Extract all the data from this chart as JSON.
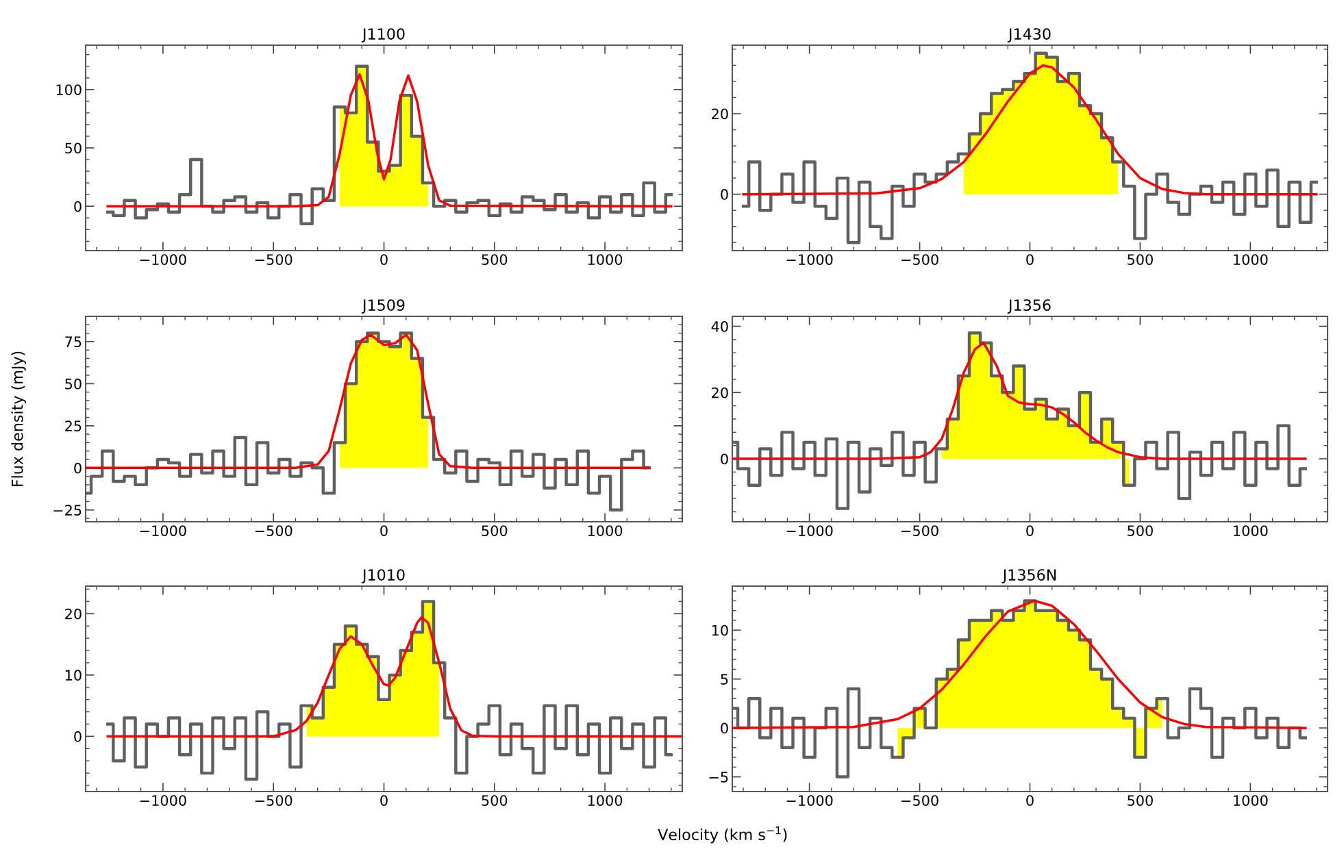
{
  "chart_data": [
    {
      "type": "step",
      "title": "J1100",
      "xlim": [
        -1350,
        1350
      ],
      "ylim": [
        -38,
        138
      ],
      "xticks": [
        -1000,
        -500,
        0,
        500,
        1000
      ],
      "yticks": [
        0,
        50,
        100
      ],
      "grid": false,
      "series": [
        {
          "type": "area",
          "color": "#ffff00",
          "x": [
            -200,
            -150,
            -100,
            -50,
            0,
            50,
            100,
            150,
            200
          ],
          "values": [
            85,
            80,
            120,
            55,
            30,
            35,
            95,
            60,
            20
          ]
        },
        {
          "color": "#606060",
          "x": [
            -1250,
            -1200,
            -1150,
            -1100,
            -1050,
            -1000,
            -950,
            -900,
            -850,
            -800,
            -750,
            -700,
            -650,
            -600,
            -550,
            -500,
            -450,
            -400,
            -350,
            -300,
            -250,
            -200,
            -150,
            -100,
            -50,
            0,
            50,
            100,
            150,
            200,
            250,
            300,
            350,
            400,
            450,
            500,
            550,
            600,
            650,
            700,
            750,
            800,
            850,
            900,
            950,
            1000,
            1050,
            1100,
            1150,
            1200,
            1250,
            1300
          ],
          "values": [
            -5,
            -8,
            5,
            -10,
            -3,
            2,
            -5,
            10,
            40,
            0,
            -5,
            5,
            8,
            -5,
            3,
            -10,
            0,
            10,
            -15,
            15,
            5,
            85,
            80,
            120,
            55,
            30,
            35,
            95,
            60,
            20,
            0,
            5,
            -5,
            3,
            5,
            -8,
            2,
            -5,
            8,
            5,
            -3,
            10,
            -5,
            3,
            -10,
            8,
            -5,
            10,
            -8,
            20,
            -5,
            10
          ]
        },
        {
          "type": "line",
          "color": "#ff0000",
          "x": [
            -1250,
            -400,
            -300,
            -250,
            -200,
            -150,
            -110,
            -70,
            -30,
            0,
            30,
            70,
            110,
            150,
            200,
            250,
            300,
            1300
          ],
          "values": [
            0,
            0,
            1,
            8,
            45,
            95,
            113,
            90,
            45,
            23,
            40,
            90,
            112,
            90,
            35,
            5,
            0.5,
            0
          ]
        }
      ]
    },
    {
      "type": "step",
      "title": "J1430",
      "xlim": [
        -1350,
        1350
      ],
      "ylim": [
        -14,
        37
      ],
      "xticks": [
        -1000,
        -500,
        0,
        500,
        1000
      ],
      "yticks": [
        0,
        20
      ],
      "grid": false,
      "series": [
        {
          "type": "area",
          "color": "#ffff00",
          "x": [
            -300,
            -250,
            -200,
            -150,
            -100,
            -50,
            0,
            50,
            100,
            150,
            200,
            250,
            300,
            350,
            400
          ],
          "values": [
            10,
            15,
            20,
            25,
            26,
            28,
            30,
            35,
            34,
            28,
            30,
            22,
            20,
            14,
            8
          ]
        },
        {
          "color": "#606060",
          "x": [
            -1300,
            -1250,
            -1200,
            -1150,
            -1100,
            -1050,
            -1000,
            -950,
            -900,
            -850,
            -800,
            -750,
            -700,
            -650,
            -600,
            -550,
            -500,
            -450,
            -400,
            -350,
            -300,
            -250,
            -200,
            -150,
            -100,
            -50,
            0,
            50,
            100,
            150,
            200,
            250,
            300,
            350,
            400,
            450,
            500,
            550,
            600,
            650,
            700,
            750,
            800,
            850,
            900,
            950,
            1000,
            1050,
            1100,
            1150,
            1200,
            1250,
            1300
          ],
          "values": [
            -3,
            8,
            -4,
            0,
            5,
            -2,
            8,
            -3,
            -6,
            4,
            -12,
            3,
            -8,
            -11,
            2,
            -3,
            5,
            3,
            5,
            8,
            10,
            15,
            20,
            25,
            26,
            28,
            30,
            35,
            34,
            28,
            30,
            22,
            20,
            14,
            8,
            2,
            -11,
            0,
            5,
            -2,
            -5,
            0,
            2,
            -2,
            3,
            -5,
            5,
            -3,
            6,
            -8,
            3,
            -7,
            3
          ]
        },
        {
          "type": "line",
          "color": "#ff0000",
          "x": [
            -1300,
            -700,
            -500,
            -400,
            -300,
            -200,
            -100,
            0,
            60,
            100,
            200,
            300,
            400,
            500,
            600,
            700,
            800,
            1300
          ],
          "values": [
            0,
            0.2,
            1.5,
            3.8,
            8,
            15,
            23,
            30,
            32,
            31.5,
            26.5,
            18.5,
            10,
            4,
            1.3,
            0.3,
            0,
            0
          ]
        }
      ]
    },
    {
      "type": "step",
      "title": "J1509",
      "ylabel": "Flux density (mJy)",
      "xlim": [
        -1350,
        1350
      ],
      "ylim": [
        -32,
        90
      ],
      "xticks": [
        -1000,
        -500,
        0,
        500,
        1000
      ],
      "yticks": [
        -25,
        0,
        25,
        50,
        75
      ],
      "grid": false,
      "series": [
        {
          "type": "area",
          "color": "#ffff00",
          "x": [
            -200,
            -150,
            -100,
            -50,
            0,
            50,
            100,
            150,
            200
          ],
          "values": [
            15,
            50,
            75,
            80,
            75,
            72,
            80,
            65,
            30
          ]
        },
        {
          "color": "#606060",
          "x": [
            -1350,
            -1300,
            -1250,
            -1200,
            -1150,
            -1100,
            -1050,
            -1000,
            -950,
            -900,
            -850,
            -800,
            -750,
            -700,
            -650,
            -600,
            -550,
            -500,
            -450,
            -400,
            -350,
            -300,
            -250,
            -200,
            -150,
            -100,
            -50,
            0,
            50,
            100,
            150,
            200,
            250,
            300,
            350,
            400,
            450,
            500,
            550,
            600,
            650,
            700,
            750,
            800,
            850,
            900,
            950,
            1000,
            1050,
            1100,
            1150,
            1200
          ],
          "values": [
            -15,
            -5,
            10,
            -8,
            -5,
            -10,
            0,
            5,
            3,
            -5,
            8,
            -3,
            10,
            -5,
            18,
            -10,
            15,
            -3,
            5,
            -5,
            3,
            0,
            -15,
            15,
            50,
            75,
            80,
            75,
            72,
            80,
            65,
            30,
            5,
            -3,
            10,
            -8,
            5,
            3,
            -10,
            10,
            -5,
            8,
            -12,
            5,
            -10,
            10,
            -15,
            -5,
            -25,
            5,
            10,
            0
          ]
        },
        {
          "type": "line",
          "color": "#ff0000",
          "x": [
            -1350,
            -400,
            -300,
            -250,
            -200,
            -150,
            -100,
            -60,
            0,
            50,
            100,
            150,
            200,
            250,
            300,
            400,
            1200
          ],
          "values": [
            0,
            0,
            2,
            10,
            35,
            62,
            76,
            79,
            73,
            74,
            79,
            70,
            38,
            8,
            1,
            0,
            0
          ]
        }
      ]
    },
    {
      "type": "step",
      "title": "J1356",
      "xlim": [
        -1350,
        1350
      ],
      "ylim": [
        -19,
        43
      ],
      "xticks": [
        -1000,
        -500,
        0,
        500,
        1000
      ],
      "yticks": [
        0,
        20,
        40
      ],
      "grid": false,
      "series": [
        {
          "type": "area",
          "color": "#ffff00",
          "x": [
            -400,
            -350,
            -300,
            -250,
            -200,
            -150,
            -100,
            -50,
            0,
            50,
            100,
            150,
            200,
            250,
            300,
            350,
            400,
            450
          ],
          "values": [
            3,
            12,
            25,
            38,
            35,
            25,
            20,
            28,
            15,
            18,
            12,
            15,
            10,
            20,
            5,
            12,
            5,
            -8
          ]
        },
        {
          "color": "#606060",
          "x": [
            -1350,
            -1300,
            -1250,
            -1200,
            -1150,
            -1100,
            -1050,
            -1000,
            -950,
            -900,
            -850,
            -800,
            -750,
            -700,
            -650,
            -600,
            -550,
            -500,
            -450,
            -400,
            -350,
            -300,
            -250,
            -200,
            -150,
            -100,
            -50,
            0,
            50,
            100,
            150,
            200,
            250,
            300,
            350,
            400,
            450,
            500,
            550,
            600,
            650,
            700,
            750,
            800,
            850,
            900,
            950,
            1000,
            1050,
            1100,
            1150,
            1200,
            1250
          ],
          "values": [
            5,
            -3,
            -8,
            3,
            -5,
            8,
            -3,
            5,
            -5,
            6,
            -15,
            5,
            -10,
            3,
            -2,
            8,
            -5,
            5,
            -7,
            3,
            12,
            25,
            38,
            35,
            25,
            20,
            28,
            15,
            18,
            12,
            15,
            10,
            20,
            5,
            12,
            5,
            -8,
            0,
            5,
            -3,
            8,
            -12,
            2,
            -5,
            5,
            -3,
            8,
            -8,
            5,
            -3,
            10,
            -8,
            -3
          ]
        },
        {
          "type": "line",
          "color": "#ff0000",
          "x": [
            -1350,
            -700,
            -500,
            -450,
            -400,
            -350,
            -300,
            -250,
            -210,
            -150,
            -100,
            -50,
            0,
            50,
            100,
            150,
            200,
            250,
            300,
            350,
            400,
            500,
            600,
            1250
          ],
          "values": [
            0,
            0,
            0.5,
            2,
            6,
            15,
            26,
            33,
            35,
            28,
            19,
            17,
            16.5,
            16.3,
            15.5,
            13.5,
            11,
            8,
            5.5,
            3.5,
            2,
            0.5,
            0,
            0
          ]
        }
      ]
    },
    {
      "type": "step",
      "title": "J1010",
      "xlabel": "Velocity (km s$^{−1}$)",
      "xlim": [
        -1350,
        1350
      ],
      "ylim": [
        -9,
        24.5
      ],
      "xticks": [
        -1000,
        -500,
        0,
        500,
        1000
      ],
      "yticks": [
        0,
        10,
        20
      ],
      "grid": false,
      "series": [
        {
          "type": "area",
          "color": "#ffff00",
          "x": [
            -350,
            -300,
            -250,
            -200,
            -150,
            -100,
            -50,
            0,
            50,
            100,
            150,
            200,
            250
          ],
          "values": [
            5,
            3,
            8,
            15,
            18,
            15,
            13,
            6,
            10,
            14,
            17,
            22,
            12
          ]
        },
        {
          "color": "#606060",
          "x": [
            -1250,
            -1200,
            -1150,
            -1100,
            -1050,
            -1000,
            -950,
            -900,
            -850,
            -800,
            -750,
            -700,
            -650,
            -600,
            -550,
            -500,
            -450,
            -400,
            -350,
            -300,
            -250,
            -200,
            -150,
            -100,
            -50,
            0,
            50,
            100,
            150,
            200,
            250,
            300,
            350,
            400,
            450,
            500,
            550,
            600,
            650,
            700,
            750,
            800,
            850,
            900,
            950,
            1000,
            1050,
            1100,
            1150,
            1200,
            1250,
            1300
          ],
          "values": [
            2,
            -4,
            3,
            -5,
            2,
            0,
            3,
            -3,
            2,
            -6,
            3,
            -2,
            3,
            -7,
            4,
            0,
            2,
            -5,
            5,
            3,
            8,
            15,
            18,
            15,
            13,
            6,
            10,
            14,
            17,
            22,
            12,
            3,
            -6,
            0,
            2,
            5,
            -3,
            2,
            -2,
            -6,
            5,
            -2,
            5,
            -3,
            2,
            -6,
            3,
            -2,
            2,
            -5,
            3,
            -3
          ]
        },
        {
          "type": "line",
          "color": "#ff0000",
          "x": [
            -1250,
            -500,
            -400,
            -350,
            -300,
            -250,
            -200,
            -150,
            -100,
            -50,
            0,
            20,
            50,
            100,
            150,
            170,
            200,
            250,
            300,
            350,
            400,
            500,
            1350
          ],
          "values": [
            0,
            0,
            1,
            2.5,
            5.5,
            10,
            14.3,
            16.3,
            15,
            11.5,
            8.5,
            8.3,
            9.5,
            14,
            18.5,
            19.4,
            18.5,
            12,
            4.5,
            1,
            0.1,
            0,
            0
          ]
        }
      ]
    },
    {
      "type": "step",
      "title": "J1356N",
      "xlim": [
        -1350,
        1350
      ],
      "ylim": [
        -6.5,
        14.5
      ],
      "xticks": [
        -1000,
        -500,
        0,
        500,
        1000
      ],
      "yticks": [
        -5,
        0,
        5,
        10
      ],
      "grid": false,
      "series": [
        {
          "type": "area",
          "color": "#ffff00",
          "x": [
            -600,
            -550,
            -500,
            -450,
            -400,
            -350,
            -300,
            -250,
            -200,
            -150,
            -100,
            -50,
            0,
            50,
            100,
            150,
            200,
            250,
            300,
            350,
            400,
            450,
            500,
            550,
            600
          ],
          "values": [
            -3,
            -1,
            2,
            0,
            5,
            6,
            9,
            11,
            11,
            12,
            11,
            12,
            13,
            12,
            12,
            11,
            10,
            9,
            6,
            5,
            2,
            1,
            -3,
            2,
            3
          ]
        },
        {
          "color": "#606060",
          "x": [
            -1350,
            -1300,
            -1250,
            -1200,
            -1150,
            -1100,
            -1050,
            -1000,
            -950,
            -900,
            -850,
            -800,
            -750,
            -700,
            -650,
            -600,
            -550,
            -500,
            -450,
            -400,
            -350,
            -300,
            -250,
            -200,
            -150,
            -100,
            -50,
            0,
            50,
            100,
            150,
            200,
            250,
            300,
            350,
            400,
            450,
            500,
            550,
            600,
            650,
            700,
            750,
            800,
            850,
            900,
            950,
            1000,
            1050,
            1100,
            1150,
            1200,
            1250
          ],
          "values": [
            2,
            0,
            3,
            -1,
            2,
            -2,
            1,
            -3,
            0,
            2,
            -5,
            4,
            -2,
            1,
            -2,
            -3,
            -1,
            2,
            0,
            5,
            6,
            9,
            11,
            11,
            12,
            11,
            12,
            13,
            12,
            12,
            11,
            10,
            9,
            6,
            5,
            2,
            1,
            -3,
            2,
            3,
            -1,
            0,
            4,
            2,
            -3,
            1,
            0,
            2,
            -1,
            1,
            -2,
            0,
            -1
          ]
        },
        {
          "type": "line",
          "color": "#ff0000",
          "x": [
            -1350,
            -800,
            -600,
            -500,
            -400,
            -300,
            -200,
            -100,
            20,
            100,
            200,
            300,
            400,
            500,
            600,
            700,
            800,
            1250
          ],
          "values": [
            0,
            0.1,
            0.9,
            2,
            3.9,
            6.5,
            9.4,
            11.9,
            13,
            12.5,
            10.6,
            7.9,
            5,
            2.6,
            1.1,
            0.4,
            0.1,
            0
          ]
        }
      ]
    }
  ]
}
